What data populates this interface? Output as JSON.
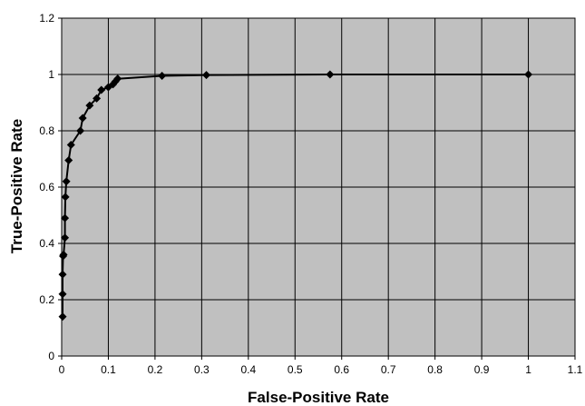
{
  "chart_data": {
    "type": "line",
    "title": "",
    "xlabel": "False-Positive Rate",
    "ylabel": "True-Positive Rate",
    "xlim": [
      0,
      1.1
    ],
    "ylim": [
      0,
      1.2
    ],
    "x_ticks": [
      0,
      0.1,
      0.2,
      0.3,
      0.4,
      0.5,
      0.6,
      0.7,
      0.8,
      0.9,
      1,
      1.1
    ],
    "x_tick_labels": [
      "0",
      "0.1",
      "0.2",
      "0.3",
      "0.4",
      "0.5",
      "0.6",
      "0.7",
      "0.8",
      "0.9",
      "1",
      "1.1"
    ],
    "y_ticks": [
      0,
      0.2,
      0.4,
      0.6,
      0.8,
      1,
      1.2
    ],
    "y_tick_labels": [
      "0",
      "0.2",
      "0.4",
      "0.6",
      "0.8",
      "1",
      "1.2"
    ],
    "grid": true,
    "plot_background": "#c0c0c0",
    "series_color": "#000000",
    "marker": "diamond",
    "series": [
      {
        "x": [
          0.002,
          0.002,
          0.002,
          0.003,
          0.004,
          0.007,
          0.007,
          0.008,
          0.01,
          0.015,
          0.02,
          0.04,
          0.045,
          0.06,
          0.075,
          0.085,
          0.1,
          0.11,
          0.115,
          0.12,
          0.215,
          0.31,
          0.575,
          1.0
        ],
        "y": [
          0.14,
          0.22,
          0.29,
          0.355,
          0.36,
          0.42,
          0.49,
          0.565,
          0.62,
          0.695,
          0.75,
          0.8,
          0.845,
          0.89,
          0.915,
          0.945,
          0.955,
          0.965,
          0.975,
          0.985,
          0.995,
          0.998,
          1.0,
          1.0
        ]
      }
    ]
  }
}
